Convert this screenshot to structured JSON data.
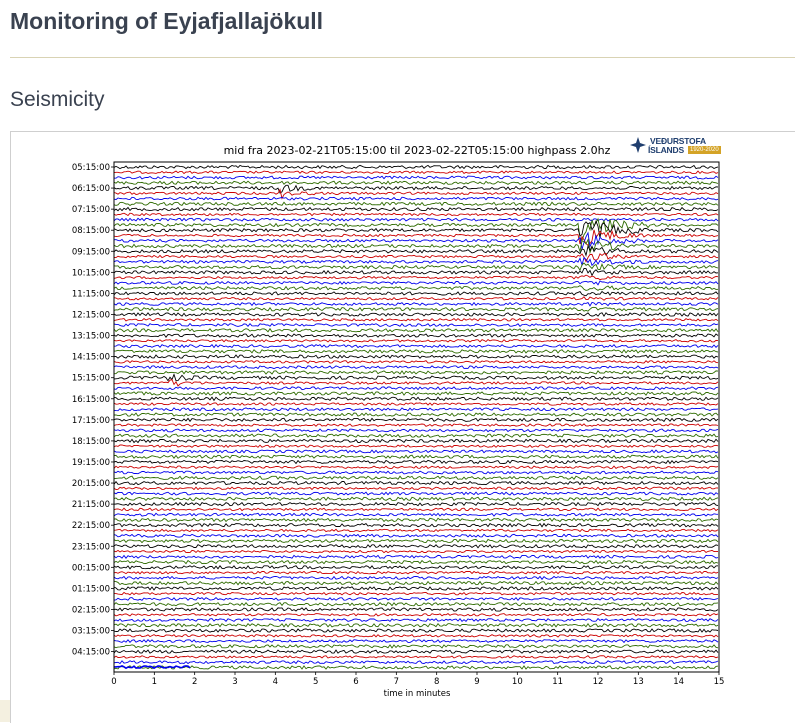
{
  "page": {
    "title": "Monitoring of Eyjafjallajökull",
    "section": "Seismicity"
  },
  "logo": {
    "line1": "VEÐURSTOFA",
    "line2": "ÍSLANDS",
    "badge": "1920-2020"
  },
  "chart_data": {
    "type": "line",
    "title": "mid fra 2023-02-21T05:15:00 til 2023-02-22T05:15:00 highpass 2.0hz",
    "xlabel": "time in minutes",
    "ylabel": "",
    "xlim": [
      0,
      15
    ],
    "x_ticks": [
      0,
      1,
      2,
      3,
      4,
      5,
      6,
      7,
      8,
      9,
      10,
      11,
      12,
      13,
      14,
      15
    ],
    "y_tick_labels": [
      "05:15:00",
      "06:15:00",
      "07:15:00",
      "08:15:00",
      "09:15:00",
      "10:15:00",
      "11:15:00",
      "12:15:00",
      "13:15:00",
      "14:15:00",
      "15:15:00",
      "16:15:00",
      "17:15:00",
      "18:15:00",
      "19:15:00",
      "20:15:00",
      "21:15:00",
      "22:15:00",
      "23:15:00",
      "00:15:00",
      "01:15:00",
      "02:15:00",
      "03:15:00",
      "04:15:00"
    ],
    "traces_per_hour": 4,
    "trace_color_cycle": [
      "#000000",
      "#cc0000",
      "#0000ee",
      "#2e6b00"
    ],
    "grid": false,
    "events": [
      {
        "start_time": "07:00:00",
        "minute": 11.7,
        "strength": "large"
      },
      {
        "start_time": "15:15:00",
        "minute": 1.4,
        "strength": "small"
      },
      {
        "start_time": "06:15:00",
        "minute": 4.2,
        "strength": "small"
      }
    ]
  }
}
